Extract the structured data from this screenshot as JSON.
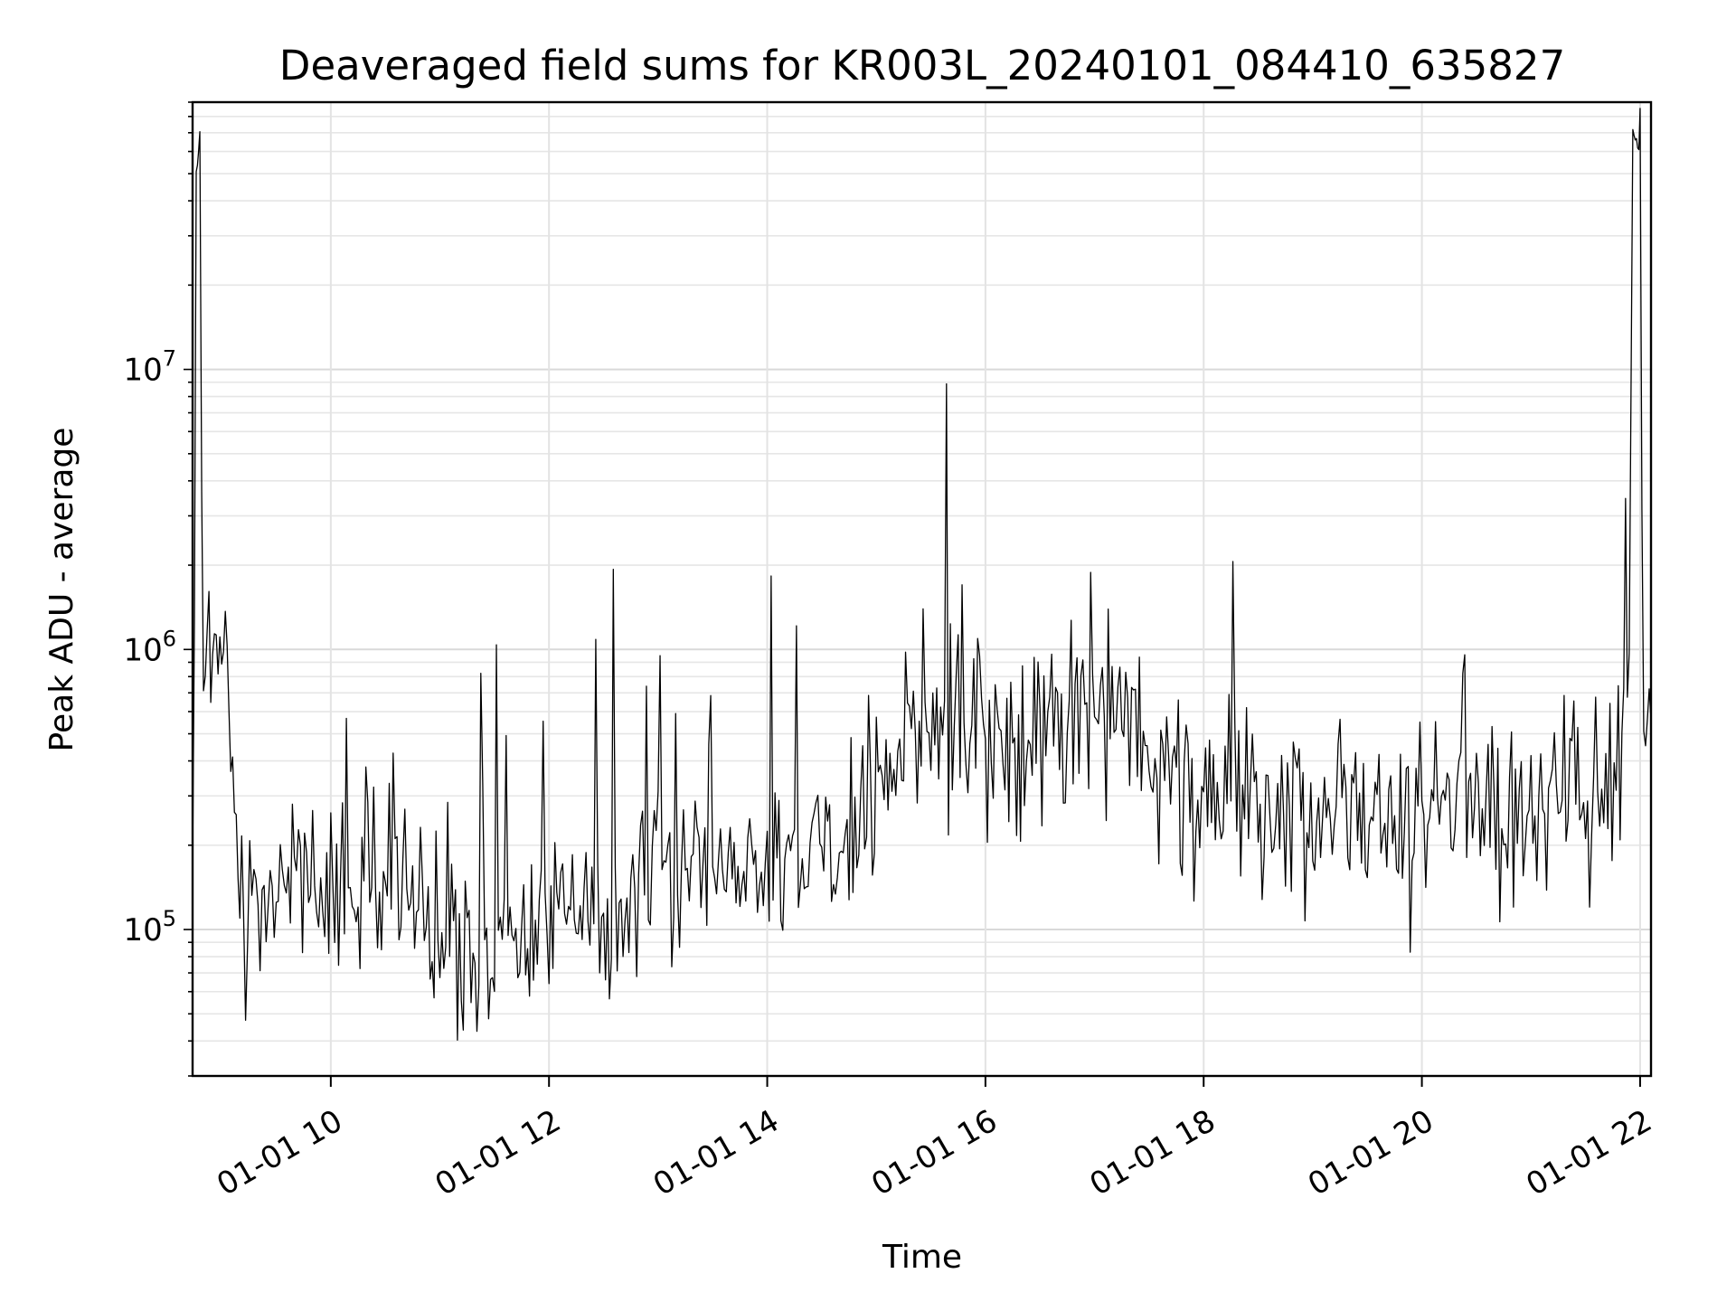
{
  "chart_data": {
    "type": "line",
    "title": "Deaveraged field sums for KR003L_20240101_084410_635827",
    "xlabel": "Time",
    "ylabel": "Peak ADU - average",
    "y_scale": "log",
    "ylim": [
      30000,
      90000000
    ],
    "xlim": [
      "2024-01-01 08:44",
      "2024-01-01 22:06"
    ],
    "grid": true,
    "x_ticks": [
      {
        "value": "2024-01-01 10:00",
        "label": "01-01 10"
      },
      {
        "value": "2024-01-01 12:00",
        "label": "01-01 12"
      },
      {
        "value": "2024-01-01 14:00",
        "label": "01-01 14"
      },
      {
        "value": "2024-01-01 16:00",
        "label": "01-01 16"
      },
      {
        "value": "2024-01-01 18:00",
        "label": "01-01 18"
      },
      {
        "value": "2024-01-01 20:00",
        "label": "01-01 20"
      },
      {
        "value": "2024-01-01 22:00",
        "label": "01-01 22"
      }
    ],
    "y_ticks": [
      {
        "value": 100000,
        "base": "10",
        "exp": "5"
      },
      {
        "value": 1000000,
        "base": "10",
        "exp": "6"
      },
      {
        "value": 10000000,
        "base": "10",
        "exp": "7"
      }
    ],
    "line_color": "#000000",
    "series": [
      {
        "x": [
          "2024-01-01 08:44",
          "2024-01-01 08:46",
          "2024-01-01 08:48",
          "2024-01-01 08:50",
          "2024-01-01 08:52",
          "2024-01-01 08:56",
          "2024-01-01 09:00",
          "2024-01-01 09:02",
          "2024-01-01 09:04",
          "2024-01-01 09:08",
          "2024-01-01 09:12",
          "2024-01-01 09:20",
          "2024-01-01 09:30",
          "2024-01-01 09:40",
          "2024-01-01 09:50",
          "2024-01-01 10:00",
          "2024-01-01 10:15",
          "2024-01-01 10:30",
          "2024-01-01 10:45",
          "2024-01-01 11:00",
          "2024-01-01 11:15",
          "2024-01-01 11:30",
          "2024-01-01 11:45",
          "2024-01-01 12:00",
          "2024-01-01 12:15",
          "2024-01-01 12:30",
          "2024-01-01 12:45",
          "2024-01-01 13:00",
          "2024-01-01 13:15",
          "2024-01-01 13:30",
          "2024-01-01 13:45",
          "2024-01-01 14:00",
          "2024-01-01 14:15",
          "2024-01-01 14:30",
          "2024-01-01 14:45",
          "2024-01-01 15:00",
          "2024-01-01 15:15",
          "2024-01-01 15:30",
          "2024-01-01 15:45",
          "2024-01-01 16:00",
          "2024-01-01 16:15",
          "2024-01-01 16:30",
          "2024-01-01 16:45",
          "2024-01-01 17:00",
          "2024-01-01 17:15",
          "2024-01-01 17:30",
          "2024-01-01 17:45",
          "2024-01-01 18:00",
          "2024-01-01 18:15",
          "2024-01-01 18:30",
          "2024-01-01 18:45",
          "2024-01-01 19:00",
          "2024-01-01 19:15",
          "2024-01-01 19:30",
          "2024-01-01 19:45",
          "2024-01-01 20:00",
          "2024-01-01 20:15",
          "2024-01-01 20:30",
          "2024-01-01 20:45",
          "2024-01-01 21:00",
          "2024-01-01 21:15",
          "2024-01-01 21:30",
          "2024-01-01 21:40",
          "2024-01-01 21:48",
          "2024-01-01 21:54",
          "2024-01-01 21:56",
          "2024-01-01 21:58",
          "2024-01-01 22:00",
          "2024-01-01 22:02",
          "2024-01-01 22:04",
          "2024-01-01 22:06"
        ],
        "y": [
          160000,
          50000000,
          65000000,
          700000,
          800000,
          900000,
          700000,
          1200000,
          600000,
          250000,
          140000,
          120000,
          150000,
          170000,
          130000,
          120000,
          150000,
          170000,
          140000,
          100000,
          90000,
          90000,
          95000,
          100000,
          110000,
          120000,
          140000,
          160000,
          170000,
          180000,
          170000,
          190000,
          180000,
          190000,
          210000,
          290000,
          420000,
          500000,
          550000,
          520000,
          480000,
          460000,
          560000,
          700000,
          600000,
          450000,
          370000,
          330000,
          310000,
          270000,
          260000,
          260000,
          250000,
          240000,
          230000,
          250000,
          270000,
          280000,
          270000,
          260000,
          270000,
          280000,
          350000,
          520000,
          560000,
          70000000,
          65000000,
          60000000,
          600000,
          500000,
          560000
        ]
      }
    ],
    "noise": {
      "seed": 20240101,
      "samples_per_segment": 14,
      "spread_dex": 0.34,
      "spike_probability": 0.03,
      "spike_dex": 0.75
    }
  }
}
